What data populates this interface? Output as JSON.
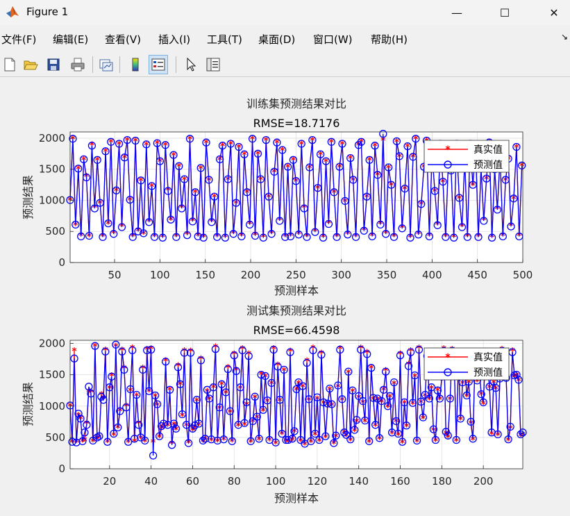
{
  "window": {
    "title": "Figure 1",
    "minimize_glyph": "—",
    "maximize_glyph": "☐",
    "close_glyph": "✕"
  },
  "menu": {
    "items": [
      "文件(F)",
      "编辑(E)",
      "查看(V)",
      "插入(I)",
      "工具(T)",
      "桌面(D)",
      "窗口(W)",
      "帮助(H)"
    ],
    "overflow_glyph": "↘"
  },
  "toolbar": {
    "icons": [
      "new-figure-icon",
      "open-file-icon",
      "save-icon",
      "print-icon",
      "link-plot-icon",
      "colorbar-icon",
      "legend-icon",
      "pointer-icon",
      "property-inspector-icon"
    ]
  },
  "colors": {
    "true_series": "#ff0000",
    "pred_series": "#0000ff"
  },
  "chart_data": [
    {
      "type": "line",
      "title": "训练集预测结果对比",
      "subtitle": "RMSE=18.7176",
      "xlabel": "预测样本",
      "ylabel": "预测结果",
      "xlim": [
        1,
        500
      ],
      "ylim": [
        0,
        2100
      ],
      "xticks": [
        50,
        100,
        150,
        200,
        250,
        300,
        350,
        400,
        450,
        500
      ],
      "yticks": [
        0,
        500,
        1000,
        1500,
        2000
      ],
      "grid": true,
      "legend_position": "top-right",
      "legend": [
        "真实值",
        "预测值"
      ],
      "series": [
        {
          "name": "真实值",
          "marker": "star",
          "color": "#ff0000"
        },
        {
          "name": "预测值",
          "marker": "circle",
          "color": "#0000ff"
        }
      ],
      "x": [
        1,
        4,
        7,
        10,
        13,
        16,
        19,
        22,
        25,
        28,
        31,
        34,
        37,
        40,
        43,
        46,
        49,
        52,
        55,
        58,
        61,
        64,
        67,
        70,
        73,
        76,
        79,
        82,
        85,
        88,
        91,
        94,
        97,
        100,
        103,
        106,
        109,
        112,
        115,
        118,
        121,
        124,
        127,
        130,
        133,
        136,
        139,
        142,
        145,
        148,
        151,
        154,
        157,
        160,
        163,
        166,
        169,
        172,
        175,
        178,
        181,
        184,
        187,
        190,
        193,
        196,
        199,
        202,
        205,
        208,
        211,
        214,
        217,
        220,
        223,
        226,
        229,
        232,
        235,
        238,
        241,
        244,
        247,
        250,
        253,
        256,
        259,
        262,
        265,
        268,
        271,
        274,
        277,
        280,
        283,
        286,
        289,
        292,
        295,
        298,
        301,
        304,
        307,
        310,
        313,
        316,
        319,
        322,
        325,
        328,
        331,
        334,
        337,
        340,
        343,
        346,
        349,
        352,
        355,
        358,
        361,
        364,
        367,
        370,
        373,
        376,
        379,
        382,
        385,
        388,
        391,
        394,
        397,
        400,
        403,
        406,
        409,
        412,
        415,
        418,
        421,
        424,
        427,
        430,
        433,
        436,
        439,
        442,
        445,
        448,
        451,
        454,
        457,
        460,
        463,
        466,
        469,
        472,
        475,
        478,
        481,
        484,
        487,
        490,
        493,
        496,
        499
      ],
      "true_values": [
        1000,
        1980,
        600,
        1500,
        430,
        1650,
        1380,
        420,
        1890,
        880,
        1640,
        950,
        420,
        1780,
        620,
        1930,
        470,
        1150,
        1900,
        580,
        1680,
        1960,
        1000,
        420,
        1950,
        510,
        1310,
        460,
        1890,
        660,
        1220,
        420,
        1910,
        1620,
        410,
        1880,
        1160,
        680,
        1720,
        420,
        1540,
        880,
        1330,
        450,
        1980,
        670,
        1120,
        430,
        1510,
        410,
        1920,
        1320,
        660,
        1050,
        420,
        1650,
        1870,
        410,
        1330,
        1900,
        470,
        950,
        1850,
        430,
        1730,
        1120,
        620,
        1980,
        440,
        1740,
        1330,
        410,
        1960,
        1050,
        470,
        1450,
        1920,
        680,
        1800,
        420,
        1530,
        430,
        1640,
        1300,
        460,
        1900,
        880,
        420,
        1520,
        1960,
        500,
        1190,
        1730,
        410,
        1620,
        630,
        1930,
        1120,
        420,
        1530,
        1900,
        980,
        460,
        1670,
        1320,
        420,
        1880,
        1930,
        520,
        1050,
        1640,
        430,
        1870,
        1400,
        620,
        1960,
        470,
        1520,
        1240,
        420,
        1940,
        1700,
        560,
        1180,
        1860,
        410,
        1690,
        1980,
        460,
        930,
        1530,
        1950,
        430,
        1750,
        1140,
        610,
        1900,
        1290,
        420,
        1660,
        1470,
        410,
        1900,
        1030,
        580,
        1650,
        420,
        1900,
        1240,
        1840,
        420,
        1520,
        680,
        1340,
        1920,
        410,
        1490,
        860,
        1700,
        430,
        1320,
        1660,
        590,
        1020,
        1850,
        430,
        1550,
        700,
        1350
      ],
      "pred_values": [
        1005,
        1990,
        610,
        1510,
        420,
        1660,
        1370,
        430,
        1880,
        870,
        1650,
        960,
        410,
        1790,
        630,
        1940,
        460,
        1160,
        1910,
        570,
        1690,
        1970,
        1010,
        410,
        1960,
        500,
        1320,
        470,
        1900,
        650,
        1230,
        410,
        1920,
        1630,
        400,
        1890,
        1150,
        690,
        1730,
        410,
        1550,
        870,
        1340,
        440,
        1990,
        660,
        1130,
        420,
        1520,
        400,
        1930,
        1330,
        650,
        1060,
        410,
        1660,
        1880,
        400,
        1340,
        1910,
        460,
        960,
        1860,
        420,
        1740,
        1130,
        610,
        1990,
        430,
        1750,
        1340,
        400,
        1970,
        1060,
        460,
        1460,
        1930,
        670,
        1810,
        410,
        1540,
        420,
        1650,
        1310,
        450,
        1910,
        870,
        410,
        1530,
        1970,
        490,
        1200,
        1740,
        400,
        1630,
        620,
        1940,
        1130,
        410,
        1540,
        1910,
        990,
        450,
        1680,
        1330,
        410,
        1890,
        1940,
        510,
        1060,
        1650,
        420,
        1880,
        1410,
        610,
        2070,
        460,
        1530,
        1250,
        410,
        1950,
        1710,
        550,
        1190,
        1870,
        400,
        1700,
        1990,
        450,
        940,
        1540,
        1960,
        420,
        1760,
        1150,
        600,
        1910,
        1300,
        410,
        1670,
        1480,
        400,
        1910,
        1040,
        570,
        1660,
        410,
        1910,
        1250,
        1850,
        410,
        1530,
        670,
        1350,
        1930,
        400,
        1500,
        850,
        1710,
        420,
        1330,
        1670,
        580,
        1030,
        1860,
        420,
        1560,
        690,
        1360
      ]
    },
    {
      "type": "line",
      "title": "测试集预测结果对比",
      "subtitle": "RMSE=66.4598",
      "xlabel": "预测样本",
      "ylabel": "预测结果",
      "xlim": [
        1,
        219
      ],
      "ylim": [
        0,
        2050
      ],
      "xticks": [
        20,
        40,
        60,
        80,
        100,
        120,
        140,
        160,
        180,
        200
      ],
      "yticks": [
        0,
        500,
        1000,
        1500,
        2000
      ],
      "grid": true,
      "legend_position": "top-right",
      "legend": [
        "真实值",
        "预测值"
      ],
      "series": [
        {
          "name": "真实值",
          "marker": "star",
          "color": "#ff0000"
        },
        {
          "name": "预测值",
          "marker": "circle",
          "color": "#0000ff"
        }
      ],
      "x": [
        1,
        2,
        3,
        4,
        5,
        6,
        7,
        8,
        9,
        10,
        11,
        12,
        13,
        14,
        15,
        16,
        17,
        18,
        19,
        20,
        21,
        22,
        23,
        24,
        25,
        26,
        27,
        28,
        29,
        30,
        31,
        32,
        33,
        34,
        35,
        36,
        37,
        38,
        39,
        40,
        41,
        42,
        43,
        44,
        45,
        46,
        47,
        48,
        49,
        50,
        51,
        52,
        53,
        54,
        55,
        56,
        57,
        58,
        59,
        60,
        61,
        62,
        63,
        64,
        65,
        66,
        67,
        68,
        69,
        70,
        71,
        72,
        73,
        74,
        75,
        76,
        77,
        78,
        79,
        80,
        81,
        82,
        83,
        84,
        85,
        86,
        87,
        88,
        89,
        90,
        91,
        92,
        93,
        94,
        95,
        96,
        97,
        98,
        99,
        100,
        101,
        102,
        103,
        104,
        105,
        106,
        107,
        108,
        109,
        110,
        111,
        112,
        113,
        114,
        115,
        116,
        117,
        118,
        119,
        120,
        121,
        122,
        123,
        124,
        125,
        126,
        127,
        128,
        129,
        130,
        131,
        132,
        133,
        134,
        135,
        136,
        137,
        138,
        139,
        140,
        141,
        142,
        143,
        144,
        145,
        146,
        147,
        148,
        149,
        150,
        151,
        152,
        153,
        154,
        155,
        156,
        157,
        158,
        159,
        160,
        161,
        162,
        163,
        164,
        165,
        166,
        167,
        168,
        169,
        170,
        171,
        172,
        173,
        174,
        175,
        176,
        177,
        178,
        179,
        180,
        181,
        182,
        183,
        184,
        185,
        186,
        187,
        188,
        189,
        190,
        191,
        192,
        193,
        194,
        195,
        196,
        197,
        198,
        199,
        200,
        201,
        202,
        203,
        204,
        205,
        206,
        207,
        208,
        209,
        210,
        211,
        212,
        213,
        214,
        215,
        216,
        217,
        218,
        219
      ],
      "true_values": [
        1000,
        420,
        1880,
        420,
        850,
        790,
        430,
        450,
        720,
        1230,
        1220,
        430,
        1950,
        480,
        500,
        1180,
        1120,
        1890,
        420,
        1280,
        1480,
        530,
        1950,
        650,
        920,
        1890,
        1600,
        1000,
        420,
        1240,
        1920,
        430,
        1160,
        720,
        480,
        1600,
        430,
        1900,
        1230,
        1910,
        420,
        1150,
        1010,
        500,
        640,
        690,
        1720,
        680,
        1250,
        400,
        700,
        620,
        1640,
        1340,
        840,
        1880,
        680,
        410,
        1870,
        610,
        660,
        1080,
        700,
        1750,
        430,
        470,
        1230,
        1100,
        450,
        1290,
        1940,
        430,
        960,
        1340,
        460,
        1200,
        1610,
        900,
        430,
        1830,
        1570,
        680,
        1280,
        1910,
        700,
        1020,
        1830,
        420,
        750,
        1130,
        810,
        460,
        1500,
        920,
        1460,
        1070,
        450,
        1350,
        1910,
        400,
        1650,
        1080,
        550,
        1560,
        440,
        440,
        1870,
        450,
        590,
        1250,
        1360,
        440,
        1300,
        380,
        1720,
        1090,
        420,
        1920,
        540,
        1110,
        440,
        1840,
        1040,
        500,
        1020,
        1260,
        1010,
        400,
        510,
        1300,
        1910,
        1090,
        570,
        520,
        1530,
        450,
        1230,
        600,
        750,
        1130,
        1920,
        1050,
        750,
        1850,
        420,
        1600,
        1100,
        680,
        1100,
        470,
        1060,
        1250,
        1560,
        980,
        1140,
        560,
        1350,
        750,
        530,
        1830,
        410,
        1040,
        670,
        1660,
        1880,
        1030,
        1470,
        430,
        1920,
        1050,
        800,
        1160,
        1820,
        1100,
        1280,
        610,
        440,
        1240,
        1100,
        1450,
        1910,
        560,
        500,
        1100,
        1900,
        1650,
        440,
        1730,
        780,
        1360,
        1800,
        1150,
        1370,
        720,
        460,
        1790,
        1390,
        1600,
        1180,
        1030,
        1870,
        1670,
        1290,
        550,
        1370,
        1270,
        530,
        1420,
        1900,
        1730,
        1430,
        450,
        640,
        1880,
        1470,
        1480,
        1400,
        520,
        540,
        1930,
        1280,
        1720,
        1100
      ],
      "pred_values": [
        1010,
        430,
        1760,
        420,
        880,
        800,
        440,
        580,
        700,
        1310,
        1200,
        450,
        1960,
        500,
        520,
        1150,
        1100,
        1870,
        430,
        1300,
        1470,
        560,
        1980,
        660,
        920,
        1870,
        1580,
        980,
        430,
        1270,
        1890,
        480,
        1180,
        700,
        500,
        1580,
        450,
        1890,
        1240,
        1900,
        210,
        1170,
        1030,
        520,
        680,
        720,
        1710,
        700,
        1260,
        380,
        720,
        640,
        1620,
        1350,
        870,
        1850,
        700,
        410,
        1850,
        640,
        690,
        1100,
        720,
        1730,
        450,
        480,
        1260,
        1120,
        470,
        1300,
        1910,
        450,
        980,
        1350,
        470,
        1220,
        1590,
        920,
        440,
        1810,
        1560,
        700,
        1300,
        1890,
        730,
        1060,
        1800,
        440,
        760,
        1150,
        830,
        480,
        1500,
        940,
        1480,
        1090,
        460,
        1370,
        1900,
        420,
        1630,
        1100,
        560,
        1580,
        460,
        460,
        1860,
        480,
        600,
        1270,
        1380,
        460,
        1320,
        400,
        1690,
        1110,
        440,
        1890,
        560,
        1140,
        460,
        1820,
        1060,
        520,
        1040,
        1280,
        1030,
        410,
        530,
        1330,
        1900,
        1110,
        580,
        540,
        1550,
        470,
        1250,
        620,
        780,
        1160,
        1900,
        1080,
        770,
        1830,
        440,
        1610,
        1130,
        700,
        1120,
        490,
        1080,
        1260,
        1550,
        1000,
        1160,
        580,
        1380,
        760,
        560,
        1810,
        430,
        1060,
        690,
        1640,
        1860,
        1050,
        1490,
        450,
        1900,
        1070,
        820,
        1180,
        1800,
        1120,
        1300,
        630,
        460,
        1250,
        1120,
        1470,
        1880,
        590,
        530,
        1120,
        1880,
        1640,
        460,
        1720,
        800,
        1380,
        1790,
        1170,
        1390,
        750,
        480,
        1770,
        1410,
        1590,
        1190,
        1060,
        1850,
        1660,
        1310,
        580,
        1390,
        1290,
        550,
        1440,
        1880,
        1710,
        1450,
        470,
        670,
        1860,
        1490,
        1500,
        1420,
        550,
        580,
        1890,
        1300,
        1700,
        1120
      ]
    }
  ]
}
